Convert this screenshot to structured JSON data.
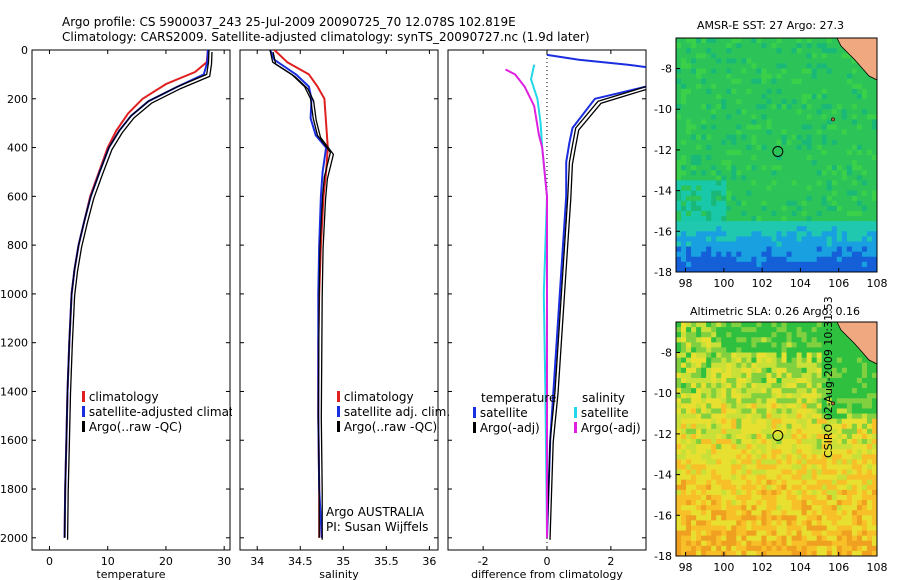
{
  "header": {
    "line1": "Argo profile: CS 5900037_243 25-Jul-2009 20090725_70 12.078S 102.819E",
    "line2": "Climatology: CARS2009. Satellite-adjusted climatology: synTS_20090727.nc (1.9d later)"
  },
  "colors": {
    "climatology": "#e02020",
    "satellite": "#1a2ee0",
    "argo": "#000000",
    "sat_salinity": "#22d8e8",
    "argo_salinity": "#e020e0"
  },
  "side_stamp": "CSIRO 02-Aug-2009 10:31:53",
  "chart_data": [
    {
      "type": "line",
      "xlabel": "temperature",
      "ylabel": "",
      "xlim": [
        -3,
        31
      ],
      "ylim": [
        2050,
        0
      ],
      "xticks": [
        0,
        10,
        20,
        30
      ],
      "yticks": [
        0,
        200,
        400,
        600,
        800,
        1000,
        1200,
        1400,
        1600,
        1800,
        2000
      ],
      "legend": [
        "climatology",
        "satellite-adjusted climatology",
        "Argo(..raw -QC)"
      ],
      "series": [
        {
          "name": "climatology",
          "color": "#e02020",
          "width": 2,
          "x": [
            27.2,
            27.0,
            25.0,
            20.0,
            16.0,
            13.5,
            11.5,
            10.0,
            8.5,
            7.0,
            6.0,
            5.0,
            4.3,
            3.8,
            3.4,
            3.1,
            2.9,
            2.7,
            2.6
          ],
          "y": [
            0,
            50,
            90,
            140,
            200,
            260,
            330,
            400,
            500,
            600,
            700,
            800,
            900,
            1000,
            1200,
            1400,
            1600,
            1800,
            2000
          ]
        },
        {
          "name": "satellite-adjusted climatology",
          "color": "#1a2ee0",
          "width": 2,
          "x": [
            27.2,
            27.1,
            26.5,
            22.0,
            17.0,
            14.0,
            12.0,
            10.2,
            8.6,
            7.1,
            6.0,
            5.0,
            4.3,
            3.8,
            3.4,
            3.1,
            2.9,
            2.7,
            2.6
          ],
          "y": [
            0,
            50,
            100,
            150,
            210,
            270,
            330,
            400,
            500,
            600,
            700,
            800,
            900,
            1000,
            1200,
            1400,
            1600,
            1800,
            2000
          ]
        },
        {
          "name": "Argo(..raw -QC)",
          "color": "#000000",
          "width": 1.3,
          "double": true,
          "x": [
            27.4,
            27.3,
            27.0,
            22.0,
            17.0,
            14.0,
            12.0,
            10.2,
            8.6,
            7.1,
            6.0,
            5.0,
            4.3,
            3.8,
            3.4,
            3.1,
            2.9,
            2.7,
            2.6
          ],
          "y": [
            0,
            50,
            100,
            150,
            210,
            270,
            330,
            400,
            500,
            600,
            700,
            800,
            900,
            1000,
            1200,
            1400,
            1600,
            1800,
            2000
          ]
        }
      ]
    },
    {
      "type": "line",
      "xlabel": "salinity",
      "ylabel": "",
      "xlim": [
        33.8,
        36.1
      ],
      "ylim": [
        2050,
        0
      ],
      "xticks": [
        34,
        34.5,
        35,
        35.5,
        36
      ],
      "legend": [
        "climatology",
        "satellite adj. clim.",
        "Argo(..raw -QC)"
      ],
      "annotation": [
        "Argo AUSTRALIA",
        "PI: Susan Wijffels"
      ],
      "series": [
        {
          "name": "climatology",
          "color": "#e02020",
          "width": 2,
          "x": [
            34.2,
            34.35,
            34.6,
            34.7,
            34.78,
            34.8,
            34.82,
            34.8,
            34.77,
            34.74,
            34.72,
            34.71,
            34.71,
            34.72,
            34.72
          ],
          "y": [
            0,
            50,
            100,
            150,
            200,
            300,
            400,
            500,
            600,
            800,
            1000,
            1200,
            1500,
            1800,
            2000
          ]
        },
        {
          "name": "satellite adj. clim.",
          "color": "#1a2ee0",
          "width": 2,
          "x": [
            34.15,
            34.2,
            34.45,
            34.6,
            34.63,
            34.62,
            34.68,
            34.8,
            34.76,
            34.74,
            34.72,
            34.71,
            34.71,
            34.72,
            34.75
          ],
          "y": [
            0,
            40,
            100,
            150,
            200,
            280,
            350,
            400,
            500,
            600,
            800,
            1000,
            1500,
            1800,
            2000
          ]
        },
        {
          "name": "Argo(..raw -QC)",
          "color": "#000000",
          "width": 1.3,
          "double": true,
          "x": [
            34.15,
            34.18,
            34.4,
            34.55,
            34.62,
            34.65,
            34.7,
            34.85,
            34.78,
            34.76,
            34.73,
            34.72,
            34.71,
            34.72,
            34.72
          ],
          "y": [
            0,
            50,
            100,
            150,
            200,
            280,
            350,
            420,
            520,
            600,
            800,
            1000,
            1500,
            1800,
            2000
          ]
        }
      ]
    },
    {
      "type": "line",
      "xlabel": "difference from climatology",
      "ylabel": "",
      "xlim": [
        -3.1,
        3.1
      ],
      "ylim": [
        2050,
        0
      ],
      "xticks": [
        -2,
        0,
        2
      ],
      "legend_left_title": "temperature",
      "legend_right_title": "salinity",
      "legend_left": [
        "satellite",
        "Argo(-adj)"
      ],
      "legend_right": [
        "satellite",
        "Argo(-adj)"
      ],
      "series": [
        {
          "name": "temperature satellite",
          "color": "#1a2ee0",
          "width": 2,
          "x": [
            0.0,
            1.0,
            2.5,
            3.1
          ],
          "y": [
            20,
            40,
            60,
            70
          ]
        },
        {
          "name": "temperature satellite deep",
          "color": "#1a2ee0",
          "width": 2,
          "x": [
            3.1,
            1.5,
            0.8,
            0.7,
            0.6,
            0.6,
            0.5,
            0.4,
            0.3,
            0.2,
            0.1,
            0.05,
            0.0
          ],
          "y": [
            150,
            200,
            320,
            380,
            460,
            600,
            800,
            1000,
            1200,
            1400,
            1600,
            1800,
            2000
          ]
        },
        {
          "name": "temperature Argo(-adj)",
          "color": "#000000",
          "width": 1.3,
          "double": true,
          "x": [
            3.1,
            1.6,
            0.9,
            0.8,
            0.7,
            0.65,
            0.55,
            0.45,
            0.35,
            0.25,
            0.1,
            0.05,
            0.0
          ],
          "y": [
            150,
            210,
            320,
            390,
            460,
            600,
            800,
            1000,
            1200,
            1400,
            1600,
            1800,
            2000
          ]
        },
        {
          "name": "salinity satellite",
          "color": "#22d8e8",
          "width": 2,
          "x": [
            -0.4,
            -0.5,
            -0.3,
            -0.2,
            -0.15,
            0.0,
            -0.1,
            -0.05,
            0.0
          ],
          "y": [
            60,
            120,
            200,
            300,
            400,
            600,
            1000,
            1400,
            2000
          ]
        },
        {
          "name": "salinity Argo(-adj)",
          "color": "#e020e0",
          "width": 2,
          "x": [
            -1.3,
            -1.0,
            -0.7,
            -0.4,
            -0.25,
            -0.15,
            0.0,
            0.0,
            0.0
          ],
          "y": [
            80,
            100,
            150,
            230,
            350,
            400,
            600,
            1000,
            2000
          ]
        }
      ]
    },
    {
      "type": "heatmap",
      "title": "AMSR-E SST: 27 Argo: 27.3",
      "xlim": [
        97.5,
        108
      ],
      "ylim": [
        -18,
        -6.5
      ],
      "xticks": [
        98,
        100,
        102,
        104,
        106,
        108
      ],
      "yticks": [
        -8,
        -10,
        -12,
        -14,
        -16,
        -18
      ]
    },
    {
      "type": "heatmap",
      "title": "Altimetric SLA: 0.26 Argo: 0.16",
      "xlim": [
        97.5,
        108
      ],
      "ylim": [
        -18,
        -6.5
      ],
      "xticks": [
        98,
        100,
        102,
        104,
        106,
        108
      ],
      "yticks": [
        -8,
        -10,
        -12,
        -14,
        -16,
        -18
      ]
    }
  ]
}
